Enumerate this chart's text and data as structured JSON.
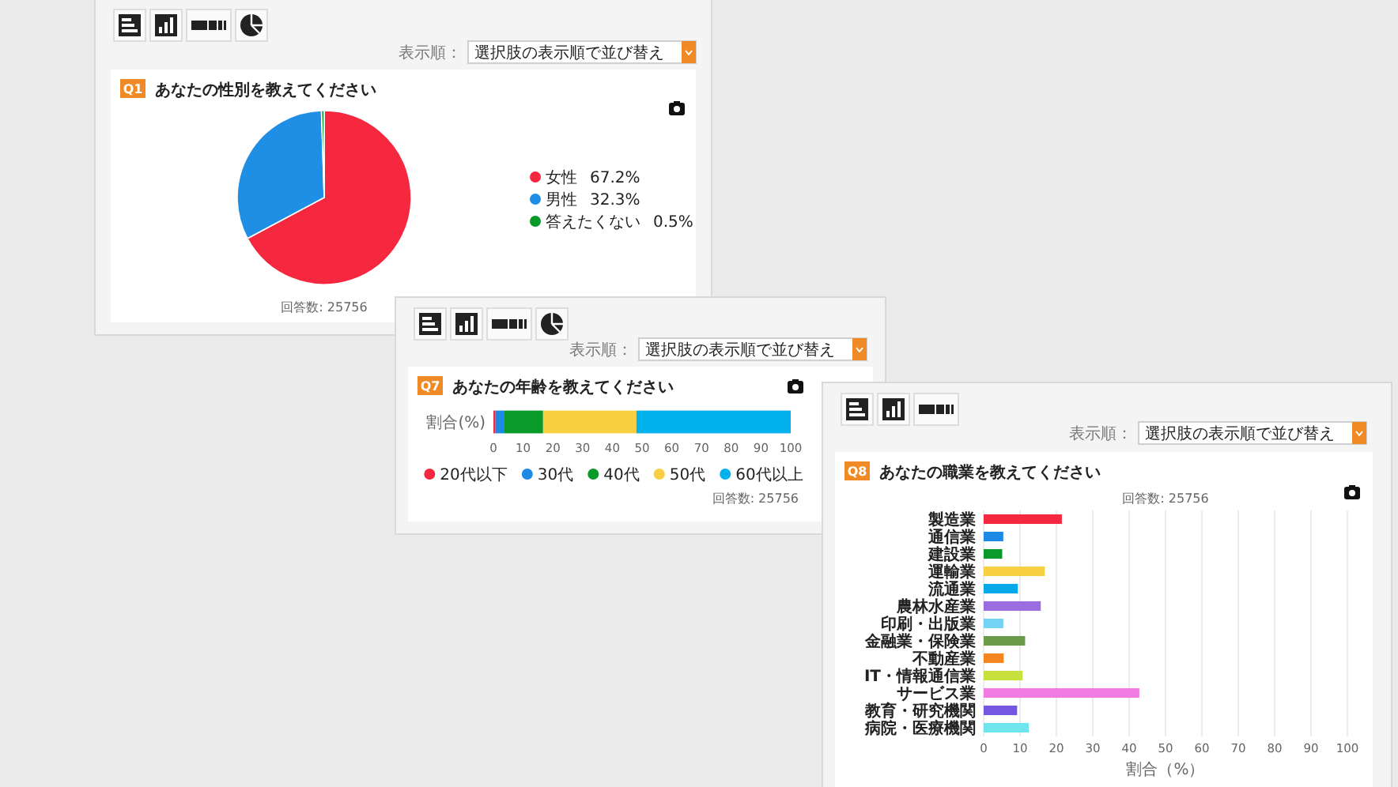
{
  "chart_data": [
    {
      "type": "pie",
      "title": "あなたの性別を教えてください",
      "categories": [
        "女性",
        "男性",
        "答えたくない"
      ],
      "values": [
        67.2,
        32.3,
        0.5
      ],
      "value_labels": [
        "67.2%",
        "32.3%",
        "0.5%"
      ],
      "colors": [
        "#f5283f",
        "#1e8fe5",
        "#0a9a2a"
      ],
      "legend": "right",
      "annotations": [
        "Q1",
        "表示順：",
        "選択肢の表示順で並び替え",
        "回答数: 25756"
      ]
    },
    {
      "type": "bar",
      "orientation": "horizontal",
      "stacked": true,
      "title": "あなたの年齢を教えてください",
      "categories": [
        "割合(%)"
      ],
      "series": [
        {
          "name": "20代以下",
          "color": "#f5283f",
          "values": [
            0.7
          ]
        },
        {
          "name": "30代",
          "color": "#1e88e5",
          "values": [
            2.8
          ]
        },
        {
          "name": "40代",
          "color": "#0a9a2a",
          "values": [
            13.2
          ]
        },
        {
          "name": "50代",
          "color": "#f8cf40",
          "values": [
            31.4
          ]
        },
        {
          "name": "60代以上",
          "color": "#03b1ec",
          "values": [
            51.9
          ]
        }
      ],
      "xlim": [
        0,
        100
      ],
      "xticks": [
        0,
        10,
        20,
        30,
        40,
        50,
        60,
        70,
        80,
        90,
        100
      ],
      "legend": "bottom",
      "annotations": [
        "Q7",
        "表示順：",
        "選択肢の表示順で並び替え",
        "回答数: 25756"
      ]
    },
    {
      "type": "bar",
      "orientation": "horizontal",
      "title": "あなたの職業を教えてください",
      "categories": [
        "製造業",
        "通信業",
        "建設業",
        "運輸業",
        "流通業",
        "農林水産業",
        "印刷・出版業",
        "金融業・保険業",
        "不動産業",
        "IT・情報通信業",
        "サービス業",
        "教育・研究機関",
        "病院・医療機関"
      ],
      "values": [
        21.5,
        5.4,
        5.1,
        16.8,
        9.4,
        15.7,
        5.4,
        11.4,
        5.5,
        10.7,
        42.8,
        9.2,
        12.4
      ],
      "colors": [
        "#f5283f",
        "#1e88e5",
        "#0a9a2a",
        "#f8cf40",
        "#03a9e8",
        "#9b6de0",
        "#74d2f5",
        "#6b9a48",
        "#f5861f",
        "#c8e03c",
        "#f07ce2",
        "#7357e0",
        "#6fe6ee"
      ],
      "xlim": [
        0,
        100
      ],
      "xticks": [
        0,
        10,
        20,
        30,
        40,
        50,
        60,
        70,
        80,
        90,
        100
      ],
      "xlabel": "割合（%）",
      "grid": "x",
      "annotations": [
        "Q8",
        "表示順：",
        "選択肢の表示順で並び替え",
        "回答数: 25756"
      ]
    }
  ]
}
